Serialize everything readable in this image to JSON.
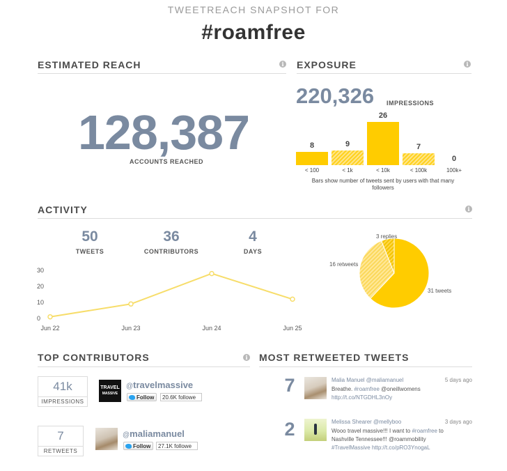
{
  "header": {
    "subtitle": "TWEETREACH SNAPSHOT FOR",
    "hashtag": "#roamfree"
  },
  "colors": {
    "accent": "#7a8aa0",
    "bar_yellow": "#ffcc00",
    "line_yellow": "#f7dd6a"
  },
  "estimated_reach": {
    "title": "ESTIMATED REACH",
    "value": "128,387",
    "label": "ACCOUNTS REACHED",
    "info_icon": "info-icon"
  },
  "exposure": {
    "title": "EXPOSURE",
    "impressions_value": "220,326",
    "impressions_label": "IMPRESSIONS",
    "note_line1": "Bars show number of tweets sent by users with that many",
    "note_line2": "followers",
    "bar_value_labels": [
      "8",
      "9",
      "26",
      "7",
      "0"
    ]
  },
  "activity": {
    "title": "ACTIVITY",
    "stats": [
      {
        "value": "50",
        "label": "TWEETS"
      },
      {
        "value": "36",
        "label": "CONTRIBUTORS"
      },
      {
        "value": "4",
        "label": "DAYS"
      }
    ],
    "y_ticks": [
      "30",
      "20",
      "10",
      "0"
    ],
    "pie_labels": {
      "replies": "3 replies",
      "retweets": "16 retweets",
      "tweets": "31 tweets"
    }
  },
  "chart_data": [
    {
      "type": "bar",
      "categories": [
        "< 100",
        "< 1k",
        "< 10k",
        "< 100k",
        "100k+"
      ],
      "values": [
        8,
        9,
        26,
        7,
        0
      ],
      "hatched": [
        false,
        true,
        false,
        true,
        false
      ],
      "ylim": [
        0,
        26
      ]
    },
    {
      "type": "line",
      "x": [
        "Jun 22",
        "Jun 23",
        "Jun 24",
        "Jun 25"
      ],
      "values": [
        1,
        9,
        28,
        12
      ],
      "ylim": [
        0,
        30
      ],
      "yticks": [
        0,
        10,
        20,
        30
      ]
    },
    {
      "type": "pie",
      "categories": [
        "tweets",
        "retweets",
        "replies"
      ],
      "values": [
        31,
        16,
        3
      ]
    }
  ],
  "top_contributors": {
    "title": "TOP CONTRIBUTORS",
    "items": [
      {
        "metric": "41k",
        "metric_label": "IMPRESSIONS",
        "handle": "travelmassive",
        "follow_label": "Follow",
        "followers": "20.6K followe",
        "avatar_text_1": "TRAVEL",
        "avatar_text_2": "MASSIVE"
      },
      {
        "metric": "7",
        "metric_label": "RETWEETS",
        "handle": "maliamanuel",
        "follow_label": "Follow",
        "followers": "27.1K followe"
      }
    ]
  },
  "most_retweeted": {
    "title": "MOST RETWEETED TWEETS",
    "items": [
      {
        "count": "7",
        "name": "Malia Manuel @maliamanuel",
        "age": "5 days ago",
        "line1a": "Breathe. ",
        "line1b": "#roamfree",
        "line1c": " @oneillwomens",
        "line2": "http://t.co/NTGDHL3nOy"
      },
      {
        "count": "2",
        "name": "Melissa Shearer @mellyboo",
        "age": "3 days ago",
        "line1a": "Wooo travel massive!!! I want to ",
        "line1b": "#roamfree",
        "line1c": " to",
        "line2a": "Nashville Tennessee!!! @roammobility",
        "line3a": "#TravelMassive",
        "line3b": " http://t.co/pRO3YnogaL"
      }
    ]
  }
}
